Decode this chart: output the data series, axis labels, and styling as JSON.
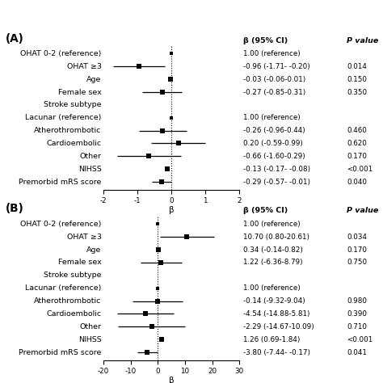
{
  "panel_A": {
    "title": "(A)",
    "xlabel": "β",
    "xlim": [
      -2,
      2
    ],
    "xticks": [
      -2,
      -1,
      0,
      1,
      2
    ],
    "rows": [
      {
        "label": "OHAT 0-2 (reference)",
        "beta": 0.0,
        "ci_lo": 0.0,
        "ci_hi": 0.0,
        "ci_text": "1.00 (reference)",
        "p_text": "",
        "is_ref": true,
        "is_header": false
      },
      {
        "label": "OHAT ≥3",
        "beta": -0.96,
        "ci_lo": -1.71,
        "ci_hi": -0.2,
        "ci_text": "-0.96 (-1.71- -0.20)",
        "p_text": "0.014",
        "is_ref": false,
        "is_header": false
      },
      {
        "label": "Age",
        "beta": -0.03,
        "ci_lo": -0.06,
        "ci_hi": 0.01,
        "ci_text": "-0.03 (-0.06-0.01)",
        "p_text": "0.150",
        "is_ref": false,
        "is_header": false
      },
      {
        "label": "Female sex",
        "beta": -0.27,
        "ci_lo": -0.85,
        "ci_hi": 0.31,
        "ci_text": "-0.27 (-0.85-0.31)",
        "p_text": "0.350",
        "is_ref": false,
        "is_header": false
      },
      {
        "label": "Stroke subtype",
        "beta": null,
        "ci_lo": null,
        "ci_hi": null,
        "ci_text": "",
        "p_text": "",
        "is_ref": false,
        "is_header": true
      },
      {
        "label": "Lacunar (reference)",
        "beta": 0.0,
        "ci_lo": 0.0,
        "ci_hi": 0.0,
        "ci_text": "1.00 (reference)",
        "p_text": "",
        "is_ref": true,
        "is_header": false
      },
      {
        "label": "Atherothrombotic",
        "beta": -0.26,
        "ci_lo": -0.96,
        "ci_hi": 0.44,
        "ci_text": "-0.26 (-0.96-0.44)",
        "p_text": "0.460",
        "is_ref": false,
        "is_header": false
      },
      {
        "label": "Cardioembolic",
        "beta": 0.2,
        "ci_lo": -0.59,
        "ci_hi": 0.99,
        "ci_text": "0.20 (-0.59-0.99)",
        "p_text": "0.620",
        "is_ref": false,
        "is_header": false
      },
      {
        "label": "Other",
        "beta": -0.66,
        "ci_lo": -1.6,
        "ci_hi": 0.29,
        "ci_text": "-0.66 (-1.60-0.29)",
        "p_text": "0.170",
        "is_ref": false,
        "is_header": false
      },
      {
        "label": "NIHSS",
        "beta": -0.13,
        "ci_lo": -0.17,
        "ci_hi": -0.08,
        "ci_text": "-0.13 (-0.17- -0.08)",
        "p_text": "<0.001",
        "is_ref": false,
        "is_header": false
      },
      {
        "label": "Premorbid mRS score",
        "beta": -0.29,
        "ci_lo": -0.57,
        "ci_hi": -0.01,
        "ci_text": "-0.29 (-0.57- -0.01)",
        "p_text": "0.040",
        "is_ref": false,
        "is_header": false
      }
    ]
  },
  "panel_B": {
    "title": "(B)",
    "xlabel": "β",
    "xlim": [
      -20,
      30
    ],
    "xticks": [
      -20,
      -10,
      0,
      10,
      20,
      30
    ],
    "rows": [
      {
        "label": "OHAT 0-2 (reference)",
        "beta": 0.0,
        "ci_lo": 0.0,
        "ci_hi": 0.0,
        "ci_text": "1.00 (reference)",
        "p_text": "",
        "is_ref": true,
        "is_header": false
      },
      {
        "label": "OHAT ≥3",
        "beta": 10.7,
        "ci_lo": 0.8,
        "ci_hi": 20.61,
        "ci_text": "10.70 (0.80-20.61)",
        "p_text": "0.034",
        "is_ref": false,
        "is_header": false
      },
      {
        "label": "Age",
        "beta": 0.34,
        "ci_lo": -0.14,
        "ci_hi": 0.82,
        "ci_text": "0.34 (-0.14-0.82)",
        "p_text": "0.170",
        "is_ref": false,
        "is_header": false
      },
      {
        "label": "Female sex",
        "beta": 1.22,
        "ci_lo": -6.36,
        "ci_hi": 8.79,
        "ci_text": "1.22 (-6.36-8.79)",
        "p_text": "0.750",
        "is_ref": false,
        "is_header": false
      },
      {
        "label": "Stroke subtype",
        "beta": null,
        "ci_lo": null,
        "ci_hi": null,
        "ci_text": "",
        "p_text": "",
        "is_ref": false,
        "is_header": true
      },
      {
        "label": "Lacunar (reference)",
        "beta": 0.0,
        "ci_lo": 0.0,
        "ci_hi": 0.0,
        "ci_text": "1.00 (reference)",
        "p_text": "",
        "is_ref": true,
        "is_header": false
      },
      {
        "label": "Atherothrombotic",
        "beta": -0.14,
        "ci_lo": -9.32,
        "ci_hi": 9.04,
        "ci_text": "-0.14 (-9.32-9.04)",
        "p_text": "0.980",
        "is_ref": false,
        "is_header": false
      },
      {
        "label": "Cardioembolic",
        "beta": -4.54,
        "ci_lo": -14.88,
        "ci_hi": 5.81,
        "ci_text": "-4.54 (-14.88-5.81)",
        "p_text": "0.390",
        "is_ref": false,
        "is_header": false
      },
      {
        "label": "Other",
        "beta": -2.29,
        "ci_lo": -14.67,
        "ci_hi": 10.09,
        "ci_text": "-2.29 (-14.67-10.09)",
        "p_text": "0.710",
        "is_ref": false,
        "is_header": false
      },
      {
        "label": "NIHSS",
        "beta": 1.26,
        "ci_lo": 0.69,
        "ci_hi": 1.84,
        "ci_text": "1.26 (0.69-1.84)",
        "p_text": "<0.001",
        "is_ref": false,
        "is_header": false
      },
      {
        "label": "Premorbid mRS score",
        "beta": -3.8,
        "ci_lo": -7.44,
        "ci_hi": -0.17,
        "ci_text": "-3.80 (-7.44- -0.17)",
        "p_text": "0.041",
        "is_ref": false,
        "is_header": false
      }
    ]
  },
  "col_header_ci": "β (95% CI)",
  "col_header_p": "P value",
  "font_size": 6.8,
  "background_color": "white"
}
